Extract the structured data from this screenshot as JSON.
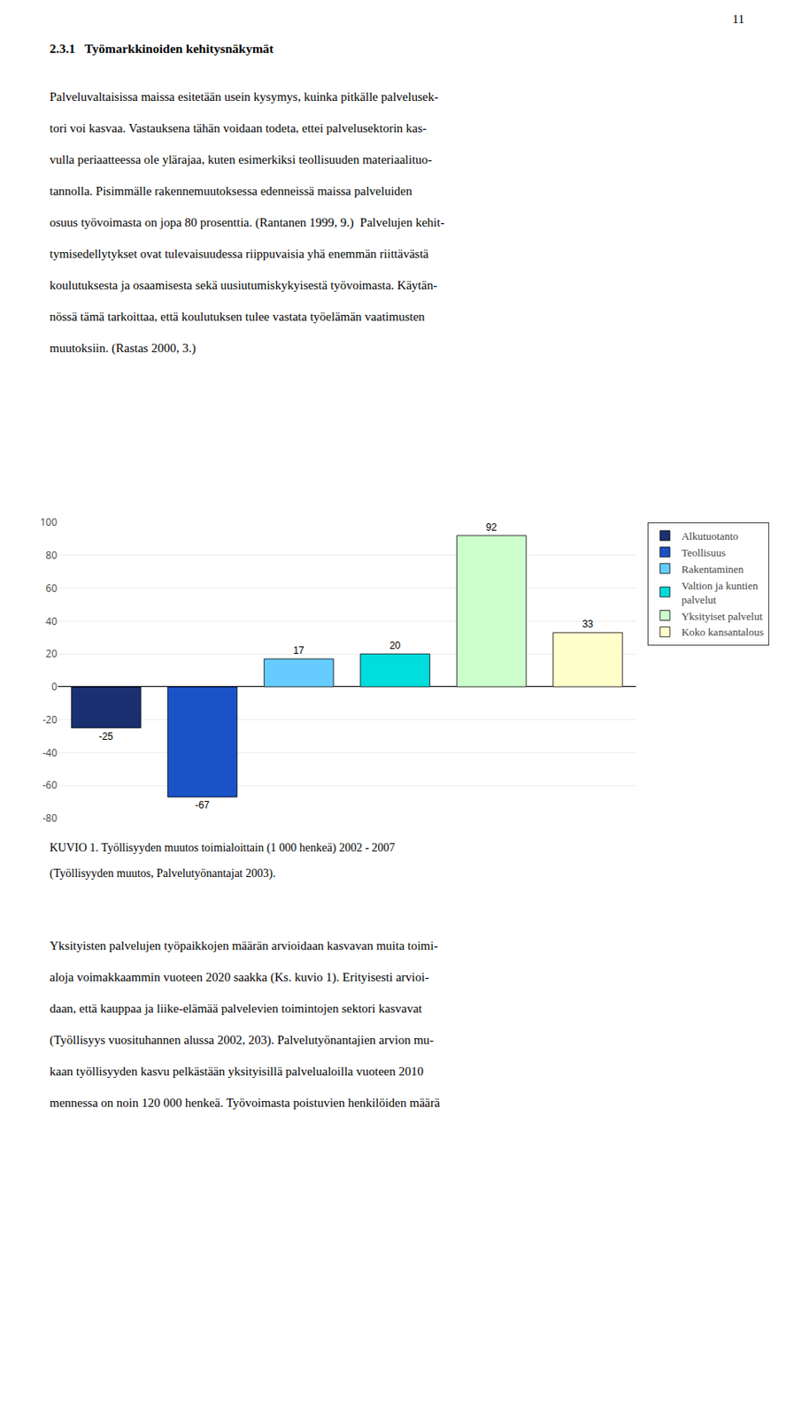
{
  "page_number": "11",
  "heading": "2.3.1   Työmarkkinoiden kehitysnäkymät",
  "body_text": [
    "Palveluvaltaisissa maissa esitetään usein kysymys, kuinka pitkälle palvelusek-",
    "tori voi kasvaa. Vastauksena tähän voidaan todeta, ettei palvelusektorin kas-",
    "vulla periaatteessa ole ylärajaa, kuten esimerkiksi teollisuuden materiaalituo-",
    "tannolla. Pisimmälle rakennemuutoksessa edenneissä maissa palveluiden",
    "osuus työvoimasta on jopa 80 prosenttia. (Rantanen 1999, 9.)  Palvelujen kehit-",
    "tymisedellytykset ovat tulevaisuudessa riippuvaisia yhä enemmän riittävästä",
    "koulutuksesta ja osaamisesta sekä uusiutumiskykyisestä työvoimasta. Käytän-",
    "nössä tämä tarkoittaa, että koulutuksen tulee vastata työelämän vaatimusten",
    "muutoksiin. (Rastas 2000, 3.)"
  ],
  "chart_data": {
    "type": "bar",
    "categories": [
      "Alkutuotanto",
      "Teollisuus",
      "Rakentaminen",
      "Valtion ja kuntien\npalvelut",
      "Yksityiset palvelut",
      "Koko kansantalous"
    ],
    "values": [
      -25,
      -67,
      17,
      20,
      92,
      33
    ],
    "colors": [
      "#1a3070",
      "#1a52c8",
      "#66ccff",
      "#00dddd",
      "#ccffcc",
      "#ffffcc"
    ],
    "ylim": [
      -80,
      100
    ],
    "yticks": [
      -80,
      -60,
      -40,
      -20,
      0,
      20,
      40,
      60,
      80,
      100
    ],
    "grid": true,
    "data_labels": true,
    "legend": "right",
    "tick_labels": "y"
  },
  "caption": [
    "KUVIO 1. Työllisyyden muutos toimialoittain (1 000 henkeä) 2002 - 2007",
    "(Työllisyyden muutos, Palvelutyönantajat 2003)."
  ],
  "bottom_text": [
    "Yksityisten palvelujen työpaikkojen määrän arvioidaan kasvavan muita toimi-",
    "aloja voimakkaammin vuoteen 2020 saakka (Ks. kuvio 1). Erityisesti arvioi-",
    "daan, että kauppaa ja liike-elämää palvelevien toimintojen sektori kasvavat",
    "(Työllisyys vuosituhannen alussa 2002, 203). Palvelutyönantajien arvion mu-",
    "kaan työllisyyden kasvu pelkästään yksityisillä palvelualoilla vuoteen 2010",
    "mennessa on noin 120 000 henkeä. Työvoimasta poistuvien henkilöiden määrä"
  ]
}
